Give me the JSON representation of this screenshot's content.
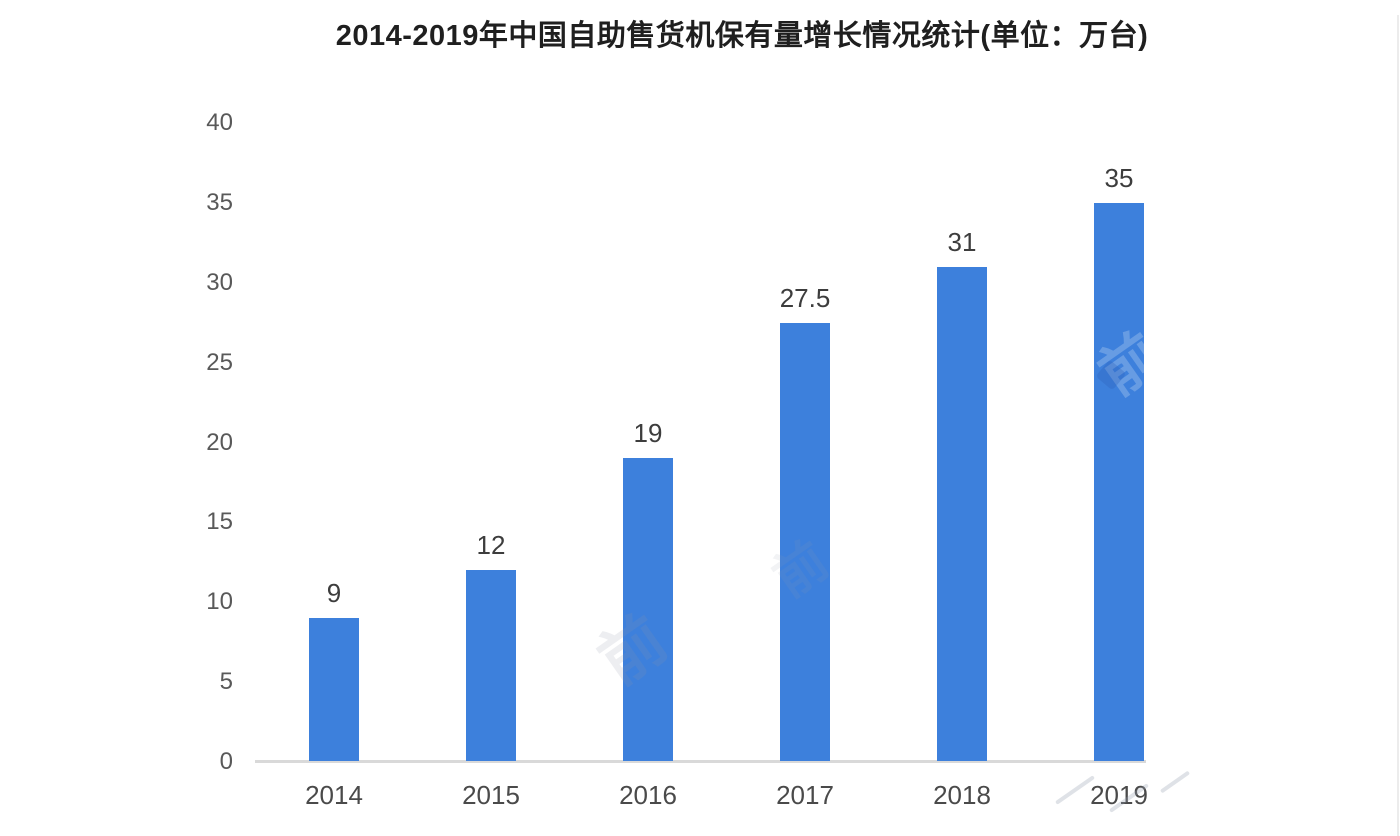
{
  "chart_data": {
    "type": "bar",
    "title": "2014-2019年中国自助售货机保有量增长情况统计(单位：万台)",
    "categories": [
      "2014",
      "2015",
      "2016",
      "2017",
      "2018",
      "2019"
    ],
    "values": [
      9,
      12,
      19,
      27.5,
      31,
      35
    ],
    "value_labels": [
      "9",
      "12",
      "19",
      "27.5",
      "31",
      "35"
    ],
    "xlabel": "",
    "ylabel": "",
    "unit_note": "万台",
    "ylim": [
      0,
      40
    ],
    "yticks": [
      0,
      5,
      10,
      15,
      20,
      25,
      30,
      35,
      40
    ],
    "grid": false,
    "legend": "none",
    "colors": {
      "bar": "#3d80dc",
      "title_text": "#1f1f1f",
      "value_label_text": "#3d3d3d",
      "axis_tick_text": "#595959",
      "category_text": "#4a4a4a",
      "baseline": "#d9d9d9",
      "page_edge_line": "#ececec",
      "watermark_gray": "rgba(140,150,170,0.16)",
      "watermark_on_bar": "rgba(255,255,255,0.22)",
      "watermark_diamond": "rgba(45,95,185,0.30)",
      "watermark_stroke": "rgba(150,158,175,0.30)"
    }
  },
  "watermark": {
    "glyph_a": "前",
    "glyph_b": "前"
  }
}
